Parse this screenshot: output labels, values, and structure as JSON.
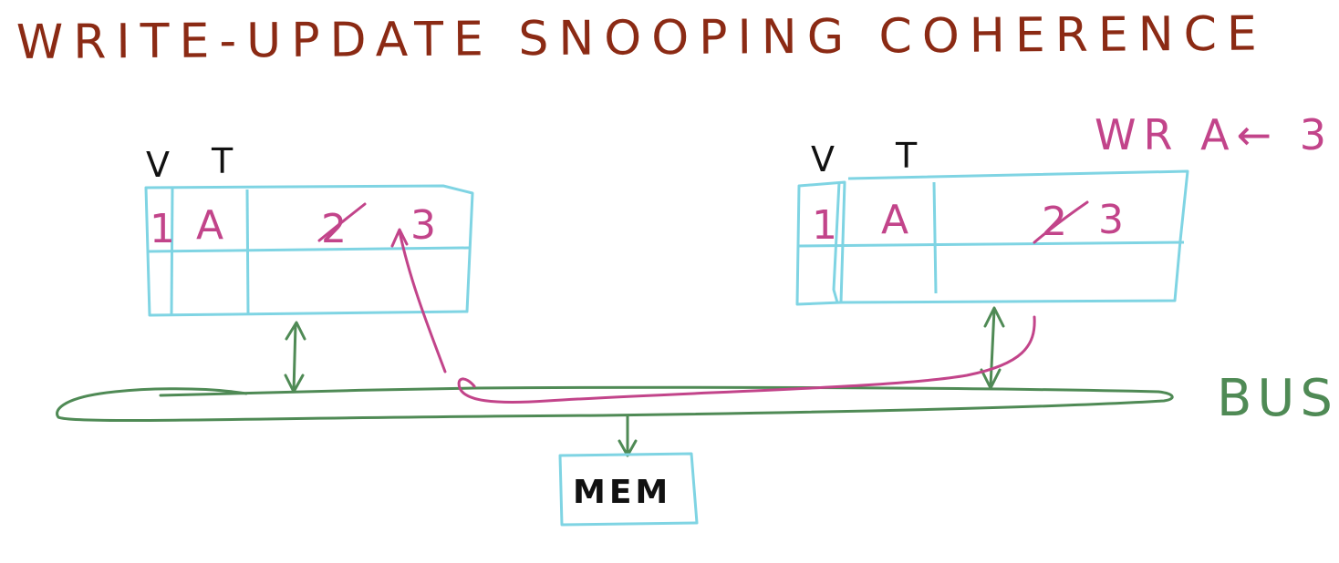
{
  "title": "WRITE-UPDATE SNOOPING COHERENCE",
  "command": "WR A← 3",
  "bus_label": "BUS",
  "memory_label": "MEM",
  "colors": {
    "title": "#8b2a14",
    "cache_outline": "#7fd4e3",
    "bus": "#4f8a55",
    "update": "#c2448a",
    "ink": "#111111"
  },
  "caches": [
    {
      "valid_header": "V",
      "tag_header": "T",
      "valid": "1",
      "tag": "A",
      "old_data": "2",
      "new_data": "3"
    },
    {
      "valid_header": "V",
      "tag_header": "T",
      "valid": "1",
      "tag": "A",
      "old_data": "2",
      "new_data": "3"
    }
  ]
}
